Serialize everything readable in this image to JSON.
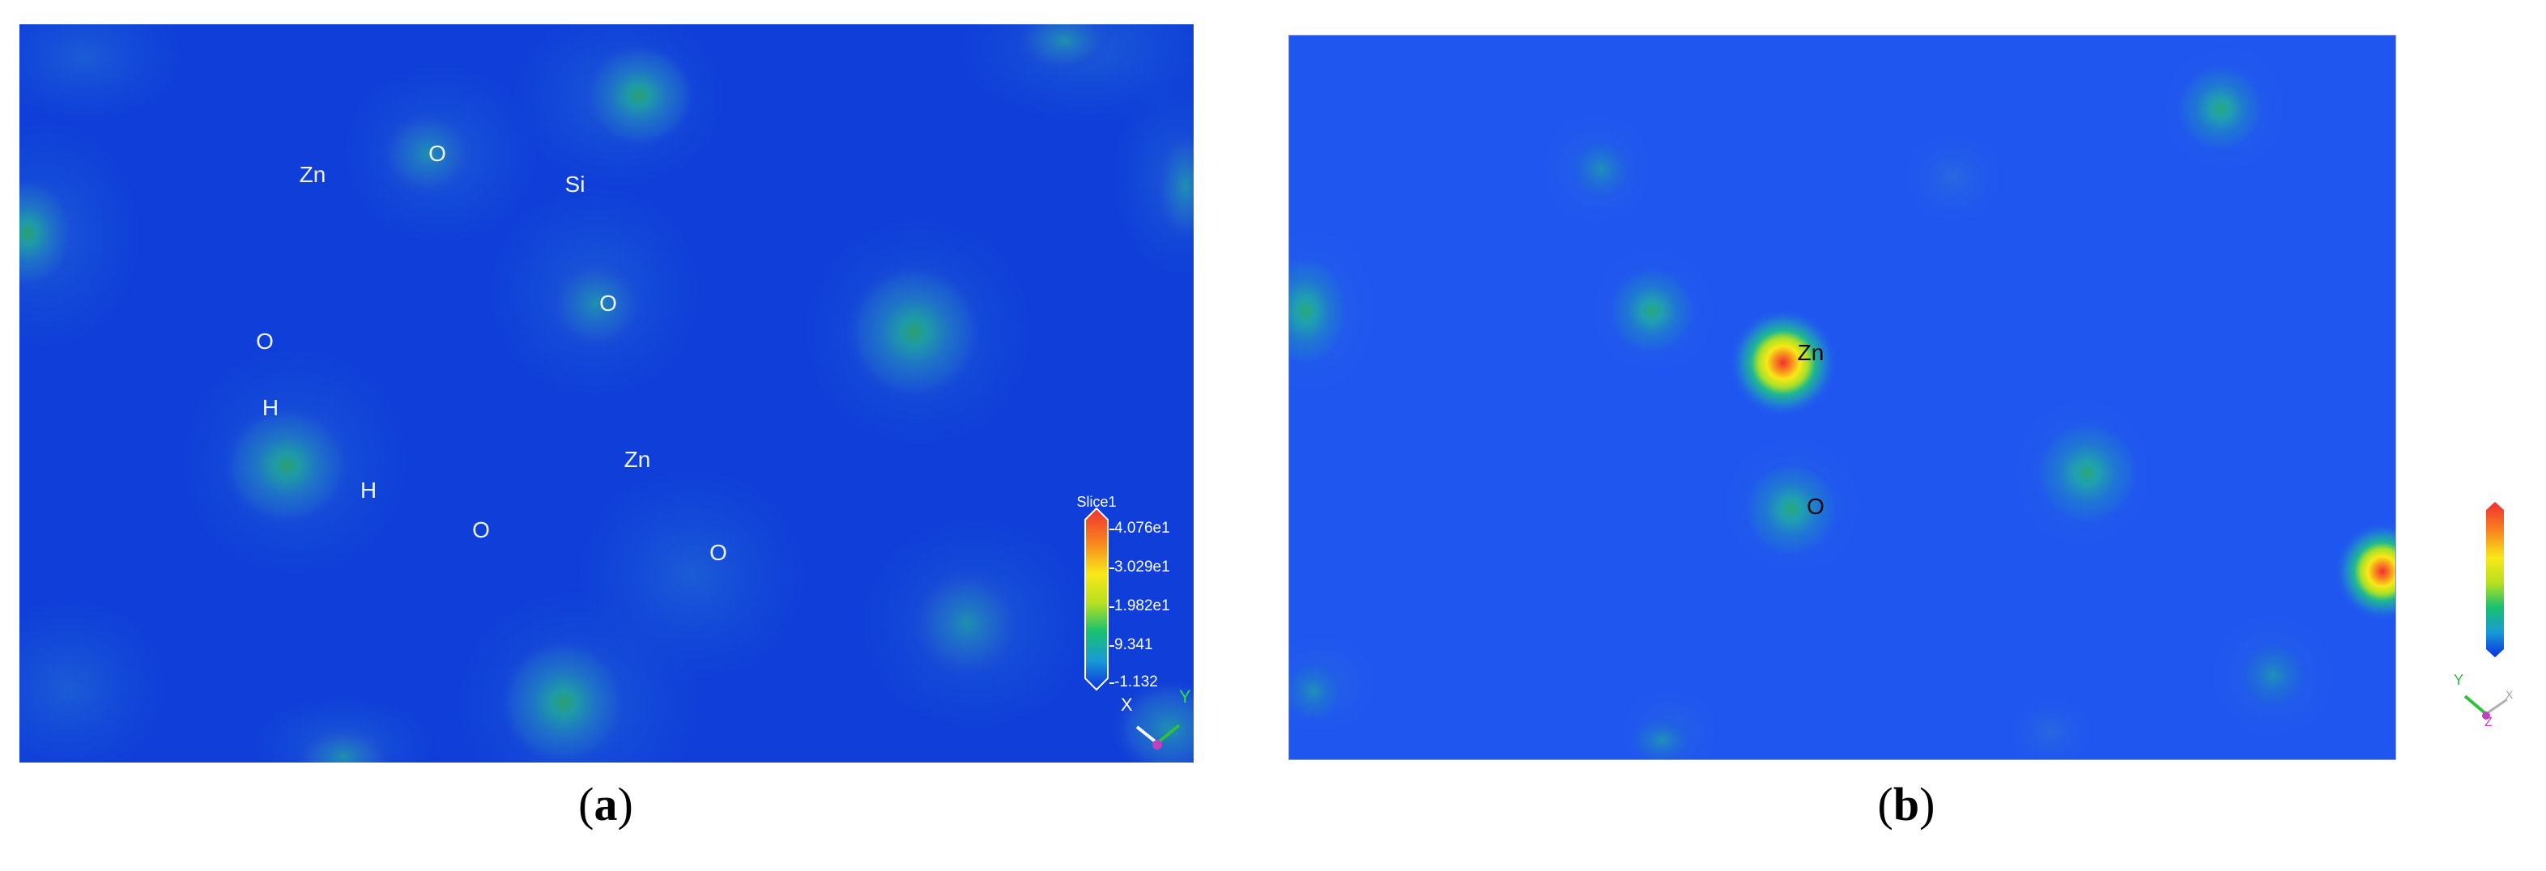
{
  "panels": [
    {
      "id": "a",
      "caption": "a",
      "background": "#0f3fd8",
      "atom_labels": [
        "Zn",
        "O",
        "Si",
        "O",
        "O",
        "H",
        "H",
        "Zn",
        "O",
        "O"
      ],
      "legend": {
        "title": "Slice1",
        "ticks": [
          "4.076e1",
          "3.029e1",
          "1.982e1",
          "9.341",
          "-1.132"
        ]
      },
      "axes": {
        "x_label": "X",
        "y_label": "Y"
      }
    },
    {
      "id": "b",
      "caption": "b",
      "background": "#1f56f0",
      "atom_labels": [
        "Zn",
        "O"
      ],
      "axes": {
        "y_label": "Y",
        "z_label": "Z",
        "x_label": "X"
      }
    }
  ],
  "colormap": [
    "#0a2fe0",
    "#1a9ad8",
    "#18c070",
    "#b8e020",
    "#f8e818",
    "#f88020",
    "#f03030"
  ]
}
